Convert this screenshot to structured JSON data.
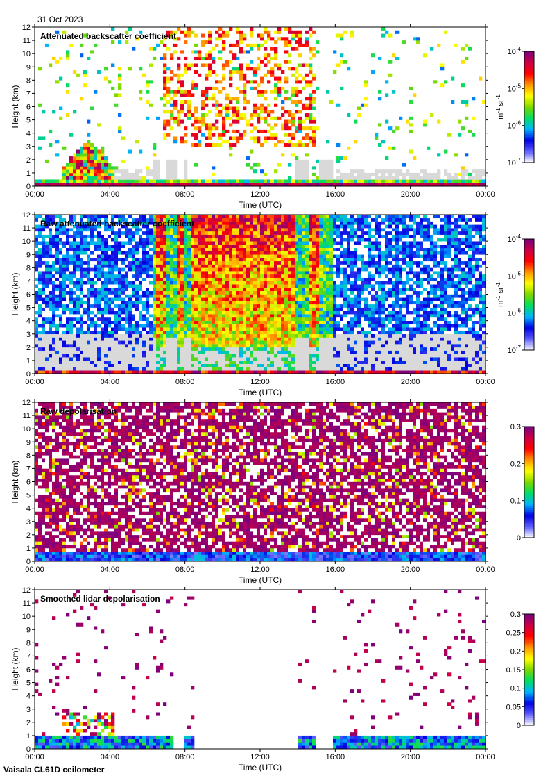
{
  "date": "31 Oct 2023",
  "footer": "Vaisala CL61D ceilometer",
  "colors": {
    "no_signal": "#d9d9d9",
    "background": "#ffffff",
    "colormap": [
      "#ffffff",
      "#5f5fff",
      "#0000e0",
      "#00b4ff",
      "#00dc64",
      "#7ad800",
      "#ffff00",
      "#ff9600",
      "#ff0000",
      "#cc0044",
      "#7a0080"
    ]
  },
  "chart_data": [
    {
      "type": "heatmap",
      "title": "Attenuated backscatter coefficient",
      "xlabel": "Time (UTC)",
      "ylabel": "Height (km)",
      "x_ticks": [
        "00:00",
        "04:00",
        "08:00",
        "12:00",
        "16:00",
        "20:00",
        "00:00"
      ],
      "y_ticks": [
        "0",
        "1",
        "2",
        "3",
        "4",
        "5",
        "6",
        "7",
        "8",
        "9",
        "10",
        "11",
        "12"
      ],
      "xlim_hours": [
        0,
        24
      ],
      "ylim_km": [
        0,
        12
      ],
      "colorbar": {
        "scale": "log",
        "range": [
          1e-07,
          0.0001
        ],
        "ticks": [
          {
            "mantissa": "10",
            "exponent": "-7"
          },
          {
            "mantissa": "10",
            "exponent": "-6"
          },
          {
            "mantissa": "10",
            "exponent": "-5"
          },
          {
            "mantissa": "10",
            "exponent": "-4"
          }
        ],
        "label": {
          "m": "m",
          "m_exp": "-1",
          "sr": "sr",
          "sr_exp": "-1"
        }
      },
      "features": {
        "boundary_layer_top_km": 0.3,
        "low_cloud": {
          "start_h": 1.5,
          "end_h": 4.2,
          "base_km": 0.5,
          "top_km": 3.2
        },
        "no_signal_periods_h": [
          [
            6.3,
            6.7
          ],
          [
            7.1,
            7.5
          ],
          [
            8.0,
            8.2
          ],
          [
            13.9,
            14.5
          ],
          [
            15.2,
            15.8
          ]
        ],
        "high_signal_period_h": [
          6.8,
          15.0
        ]
      }
    },
    {
      "type": "heatmap",
      "title": "Raw attenuated backscatter coefficient",
      "xlabel": "Time (UTC)",
      "ylabel": "Height (km)",
      "x_ticks": [
        "00:00",
        "04:00",
        "08:00",
        "12:00",
        "16:00",
        "20:00",
        "00:00"
      ],
      "y_ticks": [
        "0",
        "1",
        "2",
        "3",
        "4",
        "5",
        "6",
        "7",
        "8",
        "9",
        "10",
        "11",
        "12"
      ],
      "xlim_hours": [
        0,
        24
      ],
      "ylim_km": [
        0,
        12
      ],
      "colorbar": {
        "scale": "log",
        "range": [
          1e-07,
          0.0001
        ],
        "ticks": [
          {
            "mantissa": "10",
            "exponent": "-7"
          },
          {
            "mantissa": "10",
            "exponent": "-6"
          },
          {
            "mantissa": "10",
            "exponent": "-5"
          },
          {
            "mantissa": "10",
            "exponent": "-4"
          }
        ],
        "label": {
          "m": "m",
          "m_exp": "-1",
          "sr": "sr",
          "sr_exp": "-1"
        }
      },
      "features": {
        "noise_floor_km": 3.0,
        "high_signal_period_h": [
          6.5,
          15.5
        ],
        "no_signal_periods_h": [
          [
            6.3,
            6.5
          ],
          [
            7.1,
            7.5
          ],
          [
            8.0,
            8.3
          ],
          [
            13.9,
            14.5
          ],
          [
            15.2,
            15.8
          ]
        ]
      }
    },
    {
      "type": "heatmap",
      "title": "Raw depolarisation",
      "xlabel": "Time (UTC)",
      "ylabel": "Height (km)",
      "x_ticks": [
        "00:00",
        "04:00",
        "08:00",
        "12:00",
        "16:00",
        "20:00",
        "00:00"
      ],
      "y_ticks": [
        "0",
        "1",
        "2",
        "3",
        "4",
        "5",
        "6",
        "7",
        "8",
        "9",
        "10",
        "11",
        "12"
      ],
      "xlim_hours": [
        0,
        24
      ],
      "ylim_km": [
        0,
        12
      ],
      "colorbar": {
        "scale": "linear",
        "range": [
          0,
          0.3
        ],
        "ticks": [
          "0",
          "0.1",
          "0.2",
          "0.3"
        ]
      }
    },
    {
      "type": "heatmap",
      "title": "Smoothed lidar depolarisation",
      "xlabel": "Time (UTC)",
      "ylabel": "Height (km)",
      "x_ticks": [
        "00:00",
        "04:00",
        "08:00",
        "12:00",
        "16:00",
        "20:00",
        "00:00"
      ],
      "y_ticks": [
        "0",
        "1",
        "2",
        "3",
        "4",
        "5",
        "6",
        "7",
        "8",
        "9",
        "10",
        "11",
        "12"
      ],
      "xlim_hours": [
        0,
        24
      ],
      "ylim_km": [
        0,
        12
      ],
      "colorbar": {
        "scale": "linear",
        "range": [
          0,
          0.3
        ],
        "ticks": [
          "0",
          "0.05",
          "0.1",
          "0.15",
          "0.2",
          "0.25",
          "0.3"
        ]
      },
      "features": {
        "no_signal_periods_h": [
          [
            7.3,
            8.0
          ],
          [
            8.4,
            14.0
          ],
          [
            15.0,
            15.8
          ]
        ]
      }
    }
  ]
}
